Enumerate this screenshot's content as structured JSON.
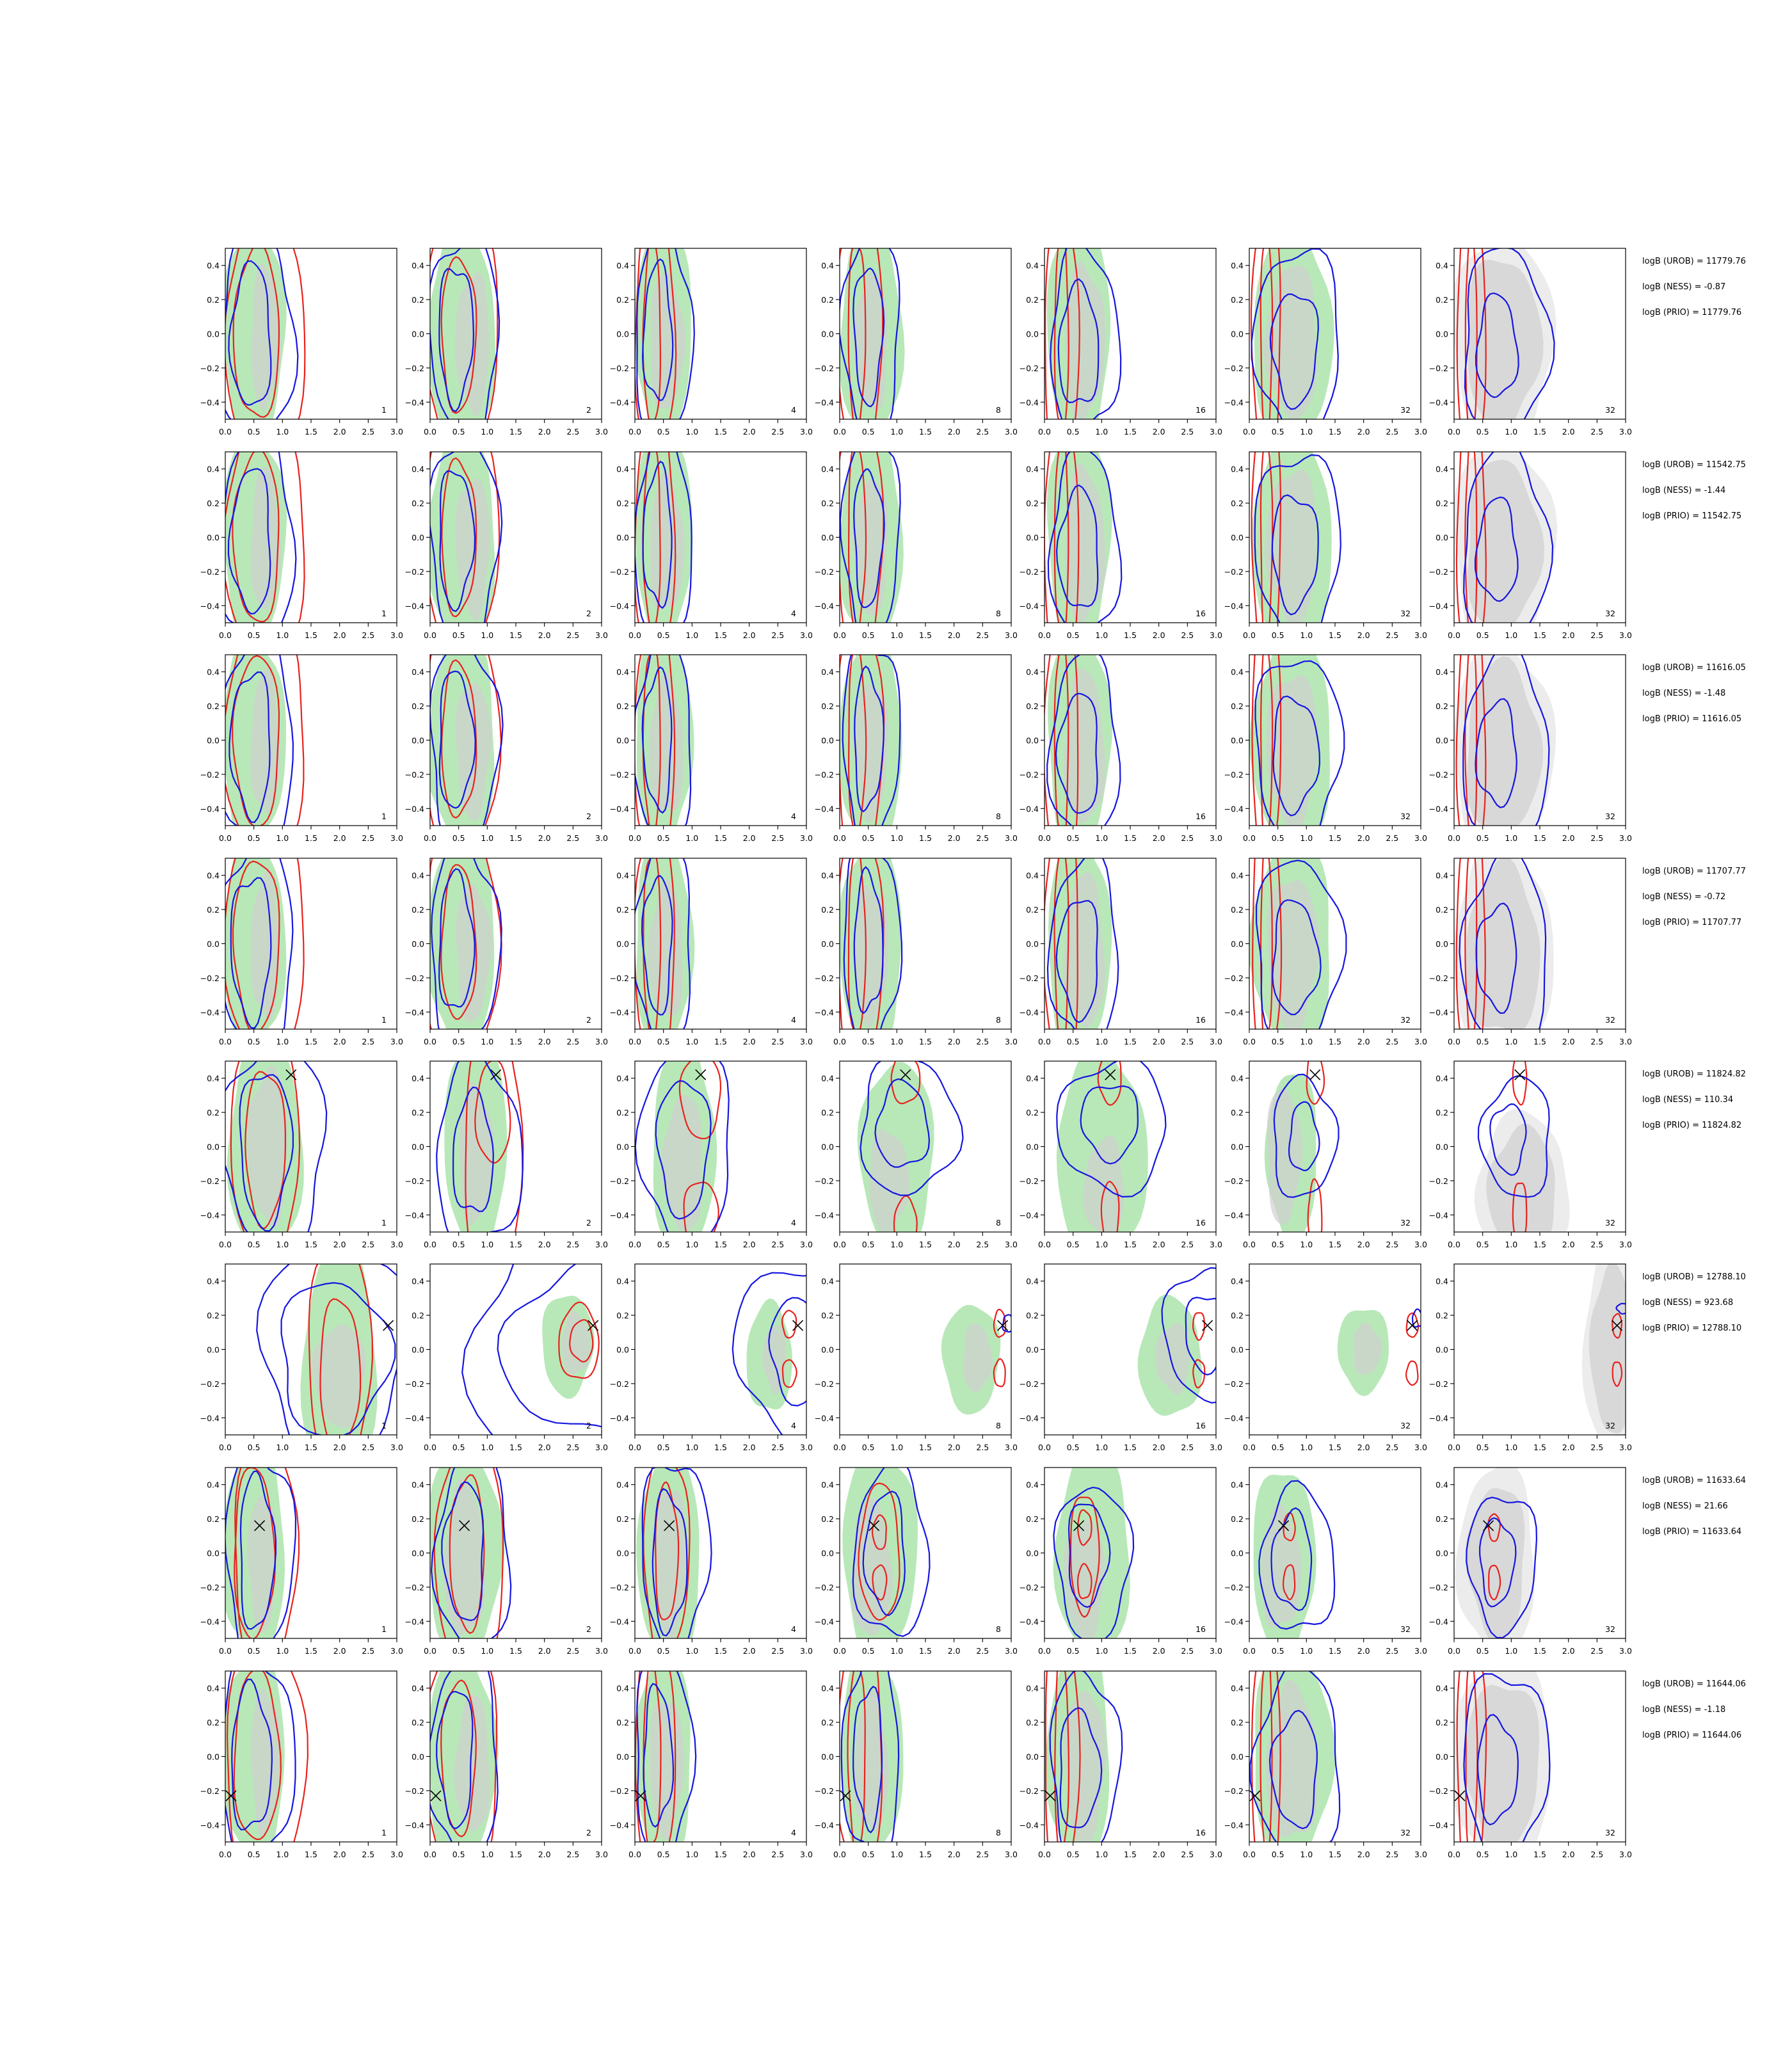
{
  "chart_data": {
    "type": "contour-grid",
    "rows": 8,
    "columns": [
      {
        "n_label": "1"
      },
      {
        "n_label": "2"
      },
      {
        "n_label": "4"
      },
      {
        "n_label": "8"
      },
      {
        "n_label": "16"
      },
      {
        "n_label": "32"
      },
      {
        "n_label": "32"
      }
    ],
    "xlim": [
      0.0,
      3.0
    ],
    "ylim": [
      -0.5,
      0.5
    ],
    "x_ticks": [
      "0.0",
      "0.5",
      "1.0",
      "1.5",
      "2.0",
      "2.5",
      "3.0"
    ],
    "y_ticks": [
      "0.4",
      "0.2",
      "0.0",
      "−0.2",
      "−0.4"
    ],
    "colors": {
      "posterior_green": "#b8e8b8",
      "gray_fill": "#d0d0d0",
      "red_contour": "#e8231e",
      "blue_contour": "#1616e0",
      "marker": "#000000"
    },
    "rows_data": [
      {
        "marker": null,
        "annotations": [
          "logB (UROB) = 11779.76",
          "logB (NESS) = -0.87",
          "logB (PRIO) = 11779.76"
        ]
      },
      {
        "marker": null,
        "annotations": [
          "logB (UROB) = 11542.75",
          "logB (NESS) = -1.44",
          "logB (PRIO) = 11542.75"
        ]
      },
      {
        "marker": null,
        "annotations": [
          "logB (UROB) = 11616.05",
          "logB (NESS) = -1.48",
          "logB (PRIO) = 11616.05"
        ]
      },
      {
        "marker": null,
        "annotations": [
          "logB (UROB) = 11707.77",
          "logB (NESS) = -0.72",
          "logB (PRIO) = 11707.77"
        ]
      },
      {
        "marker": {
          "x": 1.15,
          "y": 0.42
        },
        "annotations": [
          "logB (UROB) = 11824.82",
          "logB (NESS) = 110.34",
          "logB (PRIO) = 11824.82"
        ]
      },
      {
        "marker": {
          "x": 2.85,
          "y": 0.14
        },
        "annotations": [
          "logB (UROB) = 12788.10",
          "logB (NESS) = 923.68",
          "logB (PRIO) = 12788.10"
        ]
      },
      {
        "marker": {
          "x": 0.6,
          "y": 0.16
        },
        "annotations": [
          "logB (UROB) = 11633.64",
          "logB (NESS) = 21.66",
          "logB (PRIO) = 11633.64"
        ]
      },
      {
        "marker": {
          "x": 0.1,
          "y": -0.23
        },
        "annotations": [
          "logB (UROB) = 11644.06",
          "logB (NESS) = -1.18",
          "logB (PRIO) = 11644.06"
        ]
      }
    ]
  }
}
